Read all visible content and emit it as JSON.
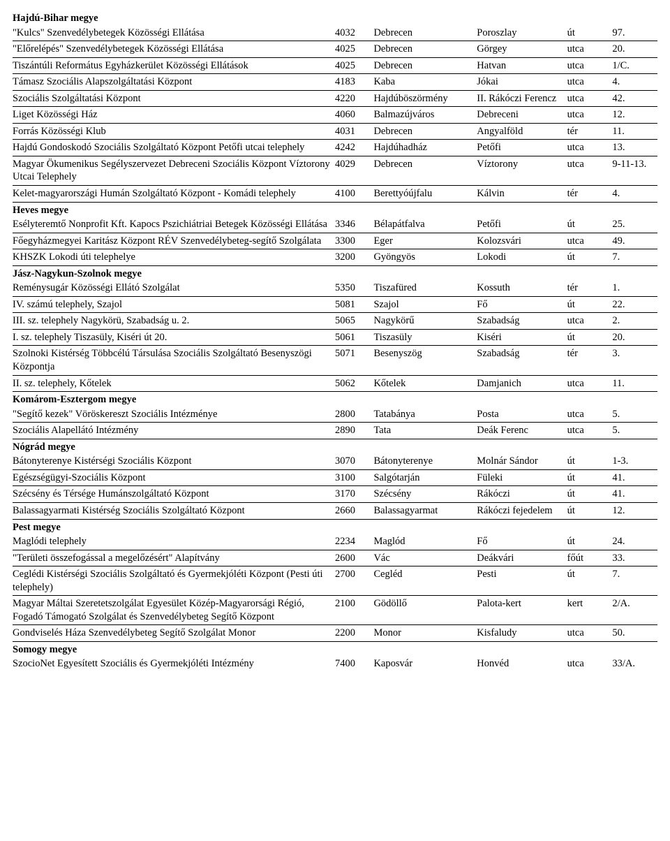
{
  "columns": [
    "name",
    "zip",
    "city",
    "street",
    "street_type",
    "number"
  ],
  "rows": [
    {
      "type": "section",
      "name": "Hajdú-Bihar megye"
    },
    {
      "type": "data",
      "hr": true,
      "cells": [
        "\"Kulcs\" Szenvedélybetegek Közösségi Ellátása",
        "4032",
        "Debrecen",
        "Poroszlay",
        "út",
        "97."
      ]
    },
    {
      "type": "data",
      "hr": true,
      "cells": [
        "\"Előrelépés\" Szenvedélybetegek Közösségi Ellátása",
        "4025",
        "Debrecen",
        "Görgey",
        "utca",
        "20."
      ]
    },
    {
      "type": "data",
      "hr": true,
      "cells": [
        "Tiszántúli Református Egyházkerület Közösségi Ellátások",
        "4025",
        "Debrecen",
        "Hatvan",
        "utca",
        "1/C."
      ]
    },
    {
      "type": "data",
      "hr": true,
      "cells": [
        "Támasz Szociális Alapszolgáltatási Központ",
        "4183",
        "Kaba",
        "Jókai",
        "utca",
        "4."
      ]
    },
    {
      "type": "data",
      "hr": true,
      "cells": [
        "Szociális Szolgáltatási Központ",
        "4220",
        "Hajdúböszörmény",
        "II. Rákóczi Ferencz",
        "utca",
        "42."
      ]
    },
    {
      "type": "data",
      "hr": true,
      "cells": [
        "Liget Közösségi Ház",
        "4060",
        "Balmazújváros",
        "Debreceni",
        "utca",
        "12."
      ]
    },
    {
      "type": "data",
      "hr": true,
      "cells": [
        "Forrás Közösségi Klub",
        "4031",
        "Debrecen",
        "Angyalföld",
        "tér",
        "11."
      ]
    },
    {
      "type": "data",
      "hr": true,
      "cells": [
        "Hajdú Gondoskodó Szociális Szolgáltató Központ Petőfi utcai telephely",
        "4242",
        "Hajdúhadház",
        "Petőfi",
        "utca",
        "13."
      ]
    },
    {
      "type": "data",
      "hr": true,
      "cells": [
        "Magyar Ökumenikus Segélyszervezet Debreceni Szociális Központ Víztorony Utcai Telephely",
        "4029",
        "Debrecen",
        "Víztorony",
        "utca",
        "9-11-13."
      ]
    },
    {
      "type": "data",
      "hr": true,
      "cells": [
        "Kelet-magyarországi Humán Szolgáltató Központ - Komádi telephely",
        "4100",
        "Berettyóújfalu",
        "Kálvin",
        "tér",
        "4."
      ]
    },
    {
      "type": "section",
      "name": "Heves megye"
    },
    {
      "type": "data",
      "hr": true,
      "cells": [
        "Esélyteremtő Nonprofit Kft. Kapocs Pszichiátriai Betegek Közösségi Ellátása",
        "3346",
        "Bélapátfalva",
        "Petőfi",
        "út",
        "25."
      ]
    },
    {
      "type": "data",
      "hr": true,
      "cells": [
        "Főegyházmegyei Karitász Központ RÉV Szenvedélybeteg-segítő Szolgálata",
        "3300",
        "Eger",
        "Kolozsvári",
        "utca",
        "49."
      ]
    },
    {
      "type": "data",
      "hr": true,
      "cells": [
        "KHSZK Lokodi úti telephelye",
        "3200",
        "Gyöngyös",
        "Lokodi",
        "út",
        "7."
      ]
    },
    {
      "type": "section",
      "name": "Jász-Nagykun-Szolnok megye"
    },
    {
      "type": "data",
      "hr": true,
      "cells": [
        "Reménysugár Közösségi Ellátó Szolgálat",
        "5350",
        "Tiszafüred",
        "Kossuth",
        "tér",
        "1."
      ]
    },
    {
      "type": "data",
      "hr": true,
      "cells": [
        "IV. számú telephely, Szajol",
        "5081",
        "Szajol",
        "Fő",
        "út",
        "22."
      ]
    },
    {
      "type": "data",
      "hr": true,
      "cells": [
        "III. sz. telephely Nagykörü, Szabadság u. 2.",
        "5065",
        "Nagykörű",
        "Szabadság",
        "utca",
        "2."
      ]
    },
    {
      "type": "data",
      "hr": true,
      "cells": [
        "I. sz. telephely Tiszasüly, Kiséri út 20.",
        "5061",
        "Tiszasüly",
        "Kiséri",
        "út",
        "20."
      ]
    },
    {
      "type": "data",
      "hr": true,
      "cells": [
        "Szolnoki Kistérség Többcélú Társulása Szociális Szolgáltató Besenyszögi Központja",
        "5071",
        "Besenyszög",
        "Szabadság",
        "tér",
        "3."
      ]
    },
    {
      "type": "data",
      "hr": true,
      "cells": [
        "II. sz. telephely, Kőtelek",
        "5062",
        "Kőtelek",
        "Damjanich",
        "utca",
        "11."
      ]
    },
    {
      "type": "section",
      "name": "Komárom-Esztergom megye"
    },
    {
      "type": "data",
      "hr": true,
      "cells": [
        "\"Segítő kezek\" Vöröskereszt Szociális Intézménye",
        "2800",
        "Tatabánya",
        "Posta",
        "utca",
        "5."
      ]
    },
    {
      "type": "data",
      "hr": true,
      "cells": [
        "Szociális Alapellátó Intézmény",
        "2890",
        "Tata",
        "Deák Ferenc",
        "utca",
        "5."
      ]
    },
    {
      "type": "section",
      "name": "Nógrád megye"
    },
    {
      "type": "data",
      "hr": true,
      "cells": [
        "Bátonyterenye Kistérségi Szociális Központ",
        "3070",
        "Bátonyterenye",
        "Molnár Sándor",
        "út",
        "1-3."
      ]
    },
    {
      "type": "data",
      "hr": true,
      "cells": [
        "Egészségügyi-Szociális Központ",
        "3100",
        "Salgótarján",
        "Füleki",
        "út",
        "41."
      ]
    },
    {
      "type": "data",
      "hr": true,
      "cells": [
        "Szécsény és Térsége Humánszolgáltató Központ",
        "3170",
        "Szécsény",
        "Rákóczi",
        "út",
        "41."
      ]
    },
    {
      "type": "data",
      "hr": true,
      "cells": [
        "Balassagyarmati Kistérség Szociális Szolgáltató Központ",
        "2660",
        "Balassagyarmat",
        "Rákóczi fejedelem",
        "út",
        "12."
      ]
    },
    {
      "type": "section",
      "name": "Pest megye"
    },
    {
      "type": "data",
      "hr": true,
      "cells": [
        "Maglódi telephely",
        "2234",
        "Maglód",
        "Fő",
        "út",
        "24."
      ]
    },
    {
      "type": "data",
      "hr": true,
      "cells": [
        "\"Területi összefogással a megelőzésért\" Alapítvány",
        "2600",
        "Vác",
        "Deákvári",
        "főút",
        "33."
      ]
    },
    {
      "type": "data",
      "hr": true,
      "cells": [
        "Ceglédi Kistérségi Szociális Szolgáltató és Gyermekjóléti Központ (Pesti úti telephely)",
        "2700",
        "Cegléd",
        "Pesti",
        "út",
        "7."
      ]
    },
    {
      "type": "data",
      "hr": true,
      "cells": [
        "Magyar Máltai Szeretetszolgálat Egyesület Közép-Magyarorsági Régió, Fogadó Támogató Szolgálat és Szenvedélybeteg Segítő Központ",
        "2100",
        "Gödöllő",
        "Palota-kert",
        "kert",
        "2/A."
      ]
    },
    {
      "type": "data",
      "hr": true,
      "cells": [
        "Gondviselés Háza Szenvedélybeteg Segítő Szolgálat Monor",
        "2200",
        "Monor",
        "Kisfaludy",
        "utca",
        "50."
      ]
    },
    {
      "type": "section",
      "name": "Somogy megye"
    },
    {
      "type": "data",
      "hr": false,
      "cells": [
        "SzocioNet Egyesített Szociális és Gyermekjóléti Intézmény",
        "7400",
        "Kaposvár",
        "Honvéd",
        "utca",
        "33/A."
      ]
    }
  ]
}
